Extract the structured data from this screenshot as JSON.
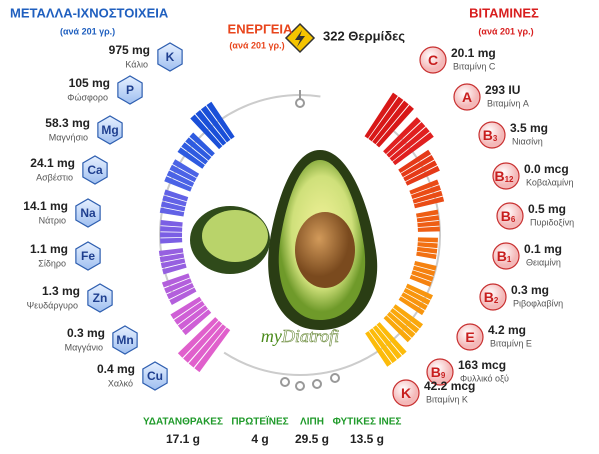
{
  "minerals": {
    "title": "ΜΕΤΑΛΛΑ-ΙΧΝΟΣΤΟΙΧΕΙΑ",
    "subtitle": "(ανά 201 γρ.)",
    "items": [
      {
        "symbol": "K",
        "amount": "975 mg",
        "name": "Κάλιο"
      },
      {
        "symbol": "P",
        "amount": "105 mg",
        "name": "Φώσφορο"
      },
      {
        "symbol": "Mg",
        "amount": "58.3 mg",
        "name": "Μαγνήσιο"
      },
      {
        "symbol": "Ca",
        "amount": "24.1 mg",
        "name": "Ασβέστιο"
      },
      {
        "symbol": "Na",
        "amount": "14.1 mg",
        "name": "Νάτριο"
      },
      {
        "symbol": "Fe",
        "amount": "1.1 mg",
        "name": "Σίδηρο"
      },
      {
        "symbol": "Zn",
        "amount": "1.3 mg",
        "name": "Ψευδάργυρο"
      },
      {
        "symbol": "Mn",
        "amount": "0.3 mg",
        "name": "Μαγγάνιο"
      },
      {
        "symbol": "Cu",
        "amount": "0.4 mg",
        "name": "Χαλκό"
      }
    ]
  },
  "energy": {
    "title": "ΕΝΕΡΓΕΙΑ",
    "subtitle": "(ανά 201 γρ.)",
    "value": "322 Θερμίδες"
  },
  "vitamins": {
    "title": "ΒΙΤΑΜΙΝΕΣ",
    "subtitle": "(ανά 201 γρ.)",
    "items": [
      {
        "symbol": "C",
        "amount": "20.1 mg",
        "name": "Βιταμίνη C"
      },
      {
        "symbol": "A",
        "amount": "293 IU",
        "name": "Βιταμίνη A"
      },
      {
        "symbol": "B",
        "sub": "3",
        "amount": "3.5 mg",
        "name": "Νιασίνη"
      },
      {
        "symbol": "B",
        "sub": "12",
        "amount": "0.0 mcg",
        "name": "Κοβαλαμίνη"
      },
      {
        "symbol": "B",
        "sub": "6",
        "amount": "0.5 mg",
        "name": "Πυριδοξίνη"
      },
      {
        "symbol": "B",
        "sub": "1",
        "amount": "0.1 mg",
        "name": "Θειαμίνη"
      },
      {
        "symbol": "B",
        "sub": "2",
        "amount": "0.3 mg",
        "name": "Ριβοφλαβίνη"
      },
      {
        "symbol": "E",
        "amount": "4.2 mg",
        "name": "Βιταμίνη E"
      },
      {
        "symbol": "B",
        "sub": "9",
        "amount": "163 mcg",
        "name": "Φυλλικό οξύ"
      },
      {
        "symbol": "K",
        "amount": "42.2 mcg",
        "name": "Βιταμίνη K"
      }
    ]
  },
  "macros": [
    {
      "label": "ΥΔΑΤΑΝΘΡΑΚΕΣ",
      "value": "17.1 g"
    },
    {
      "label": "ΠΡΩΤΕΪΝΕΣ",
      "value": "4 g"
    },
    {
      "label": "ΛΙΠΗ",
      "value": "29.5 g"
    },
    {
      "label": "ΦΥΤΙΚΕΣ ΙΝΕΣ",
      "value": "13.5 g"
    }
  ],
  "logo": {
    "prefix": "my",
    "name": "Diatrofi"
  }
}
